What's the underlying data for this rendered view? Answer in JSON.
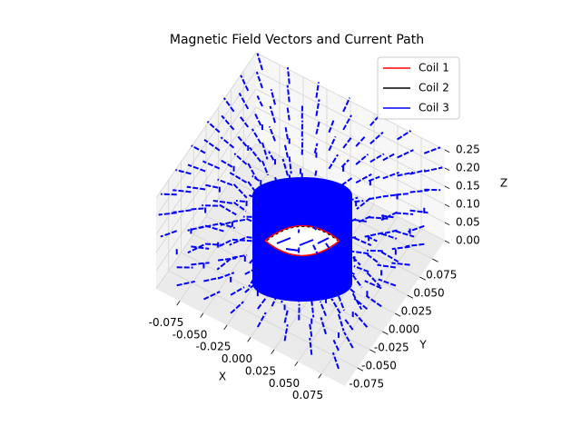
{
  "chart_data": {
    "type": "quiver3d",
    "title": "Magnetic Field Vectors and Current Path",
    "xlabel": "X",
    "ylabel": "Y",
    "zlabel": "Z",
    "xlim": [
      -0.1,
      0.1
    ],
    "ylim": [
      -0.1,
      0.1
    ],
    "zlim": [
      0,
      0.25
    ],
    "xticks": [
      -0.075,
      {
        "value": -0.05,
        "label": "-0.050"
      },
      -0.025,
      {
        "value": 0,
        "label": "0.000"
      },
      0.025,
      {
        "value": 0.05,
        "label": "0.050"
      },
      0.075
    ],
    "yticks": [
      0.075,
      {
        "value": 0.05,
        "label": "0.050"
      },
      0.025,
      {
        "value": 0,
        "label": "0.000"
      },
      -0.025,
      {
        "value": -0.05,
        "label": "-0.050"
      },
      -0.075
    ],
    "zticks": [
      {
        "value": 0,
        "label": "0.00"
      },
      0.05,
      {
        "value": 0.1,
        "label": "0.10"
      },
      0.15,
      {
        "value": 0.2,
        "label": "0.20"
      },
      0.25
    ],
    "series": [
      {
        "name": "Coil 1",
        "color": "#ff0000"
      },
      {
        "name": "Coil 2",
        "color": "#000000"
      },
      {
        "name": "Coil 3",
        "color": "#0000ff"
      }
    ],
    "grid": true,
    "legend": "upper right"
  }
}
